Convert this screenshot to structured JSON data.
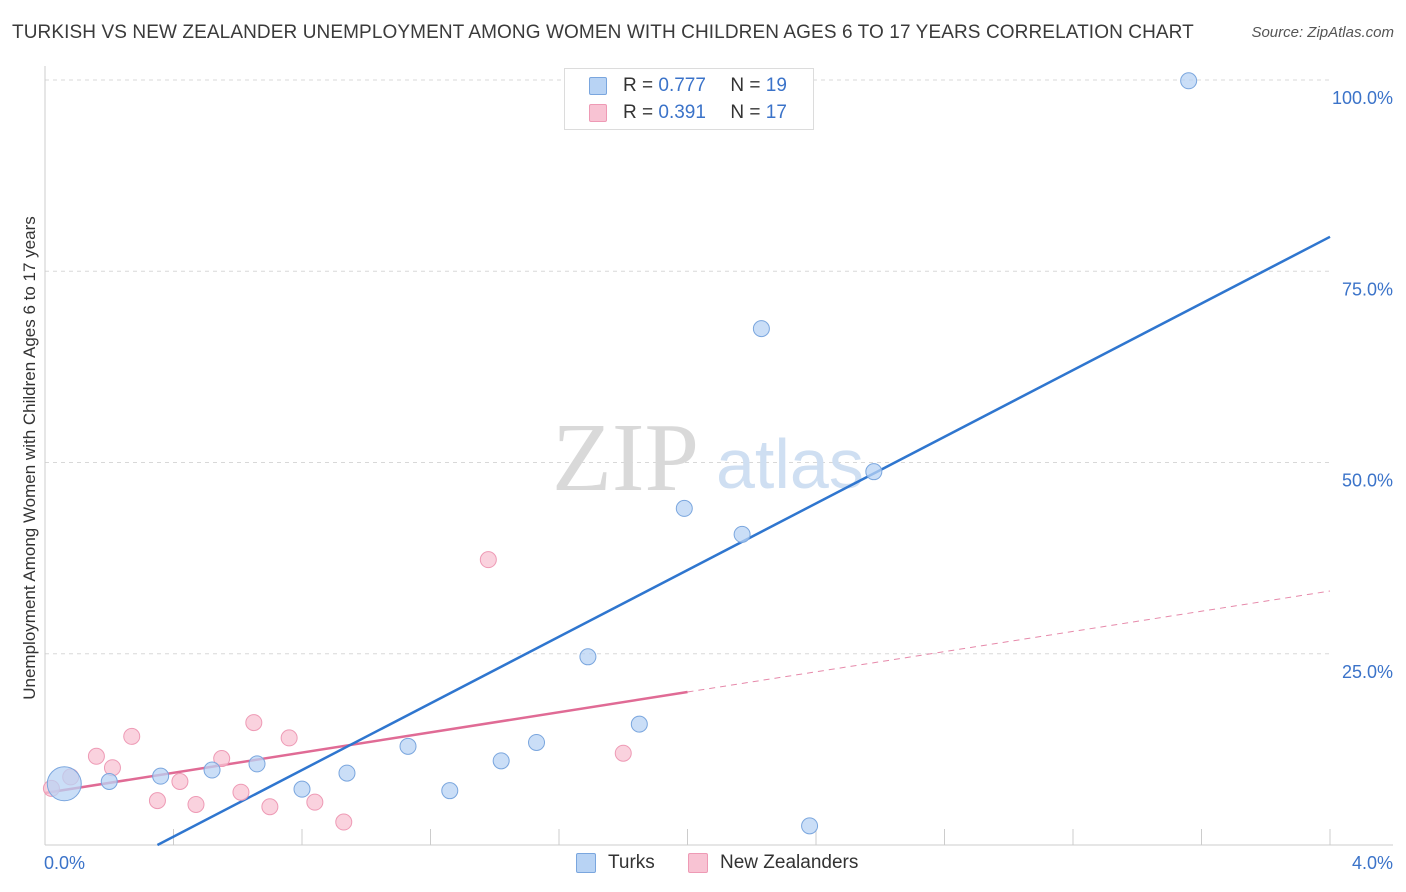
{
  "title": "TURKISH VS NEW ZEALANDER UNEMPLOYMENT AMONG WOMEN WITH CHILDREN AGES 6 TO 17 YEARS CORRELATION CHART",
  "source": "Source: ZipAtlas.com",
  "watermark": {
    "zip": "ZIP",
    "atlas": "atlas"
  },
  "legend": {
    "r_label": "R =",
    "n_label": "N =",
    "turks": {
      "r": "0.777",
      "n": "19"
    },
    "nz": {
      "r": "0.391",
      "n": "17"
    }
  },
  "colors": {
    "turks_fill": "#b8d3f4",
    "turks_stroke": "#7aa6de",
    "turks_line": "#2f76cf",
    "nz_fill": "#f8c3d3",
    "nz_stroke": "#ee9ab5",
    "nz_line": "#e06b95",
    "grid": "#d8d8d8",
    "tick_text": "#3b73c9"
  },
  "chart_data": {
    "type": "scatter",
    "title": "TURKISH VS NEW ZEALANDER UNEMPLOYMENT AMONG WOMEN WITH CHILDREN AGES 6 TO 17 YEARS CORRELATION CHART",
    "xlabel": "",
    "ylabel": "Unemployment Among Women with Children Ages 6 to 17 years",
    "xlim": [
      0,
      4.0
    ],
    "ylim": [
      0,
      100
    ],
    "x_tick_labels": [
      "0.0%",
      "4.0%"
    ],
    "y_ticks": [
      25,
      50,
      75,
      100
    ],
    "y_tick_labels": [
      "25.0%",
      "50.0%",
      "75.0%",
      "100.0%"
    ],
    "series": [
      {
        "name": "Turks",
        "points": [
          {
            "x": 0.06,
            "y": 8.0,
            "big": true
          },
          {
            "x": 0.2,
            "y": 8.3
          },
          {
            "x": 0.36,
            "y": 9.0
          },
          {
            "x": 0.52,
            "y": 9.8
          },
          {
            "x": 0.66,
            "y": 10.6
          },
          {
            "x": 0.8,
            "y": 7.3
          },
          {
            "x": 0.94,
            "y": 9.4
          },
          {
            "x": 1.13,
            "y": 12.9
          },
          {
            "x": 1.26,
            "y": 7.1
          },
          {
            "x": 1.42,
            "y": 11.0
          },
          {
            "x": 1.53,
            "y": 13.4
          },
          {
            "x": 1.69,
            "y": 24.6
          },
          {
            "x": 1.85,
            "y": 15.8
          },
          {
            "x": 1.99,
            "y": 44.0
          },
          {
            "x": 2.17,
            "y": 40.6
          },
          {
            "x": 2.23,
            "y": 67.5
          },
          {
            "x": 2.38,
            "y": 2.5
          },
          {
            "x": 2.58,
            "y": 48.8
          },
          {
            "x": 3.56,
            "y": 99.9
          }
        ],
        "trend": {
          "x": [
            0.35,
            4.0
          ],
          "y": [
            0.0,
            79.5
          ]
        }
      },
      {
        "name": "New Zealanders",
        "points": [
          {
            "x": 0.02,
            "y": 7.4
          },
          {
            "x": 0.08,
            "y": 8.9
          },
          {
            "x": 0.16,
            "y": 11.6
          },
          {
            "x": 0.21,
            "y": 10.1
          },
          {
            "x": 0.27,
            "y": 14.2
          },
          {
            "x": 0.35,
            "y": 5.8
          },
          {
            "x": 0.42,
            "y": 8.3
          },
          {
            "x": 0.47,
            "y": 5.3
          },
          {
            "x": 0.55,
            "y": 11.3
          },
          {
            "x": 0.61,
            "y": 6.9
          },
          {
            "x": 0.65,
            "y": 16.0
          },
          {
            "x": 0.7,
            "y": 5.0
          },
          {
            "x": 0.76,
            "y": 14.0
          },
          {
            "x": 0.84,
            "y": 5.6
          },
          {
            "x": 0.93,
            "y": 3.0
          },
          {
            "x": 1.38,
            "y": 37.3
          },
          {
            "x": 1.8,
            "y": 12.0
          }
        ],
        "trend": {
          "x": [
            0.0,
            2.0
          ],
          "y": [
            6.8,
            20.0
          ]
        },
        "trend_dashed": {
          "x": [
            2.0,
            4.0
          ],
          "y": [
            20.0,
            33.2
          ]
        }
      }
    ],
    "legend": [
      "Turks",
      "New Zealanders"
    ]
  }
}
